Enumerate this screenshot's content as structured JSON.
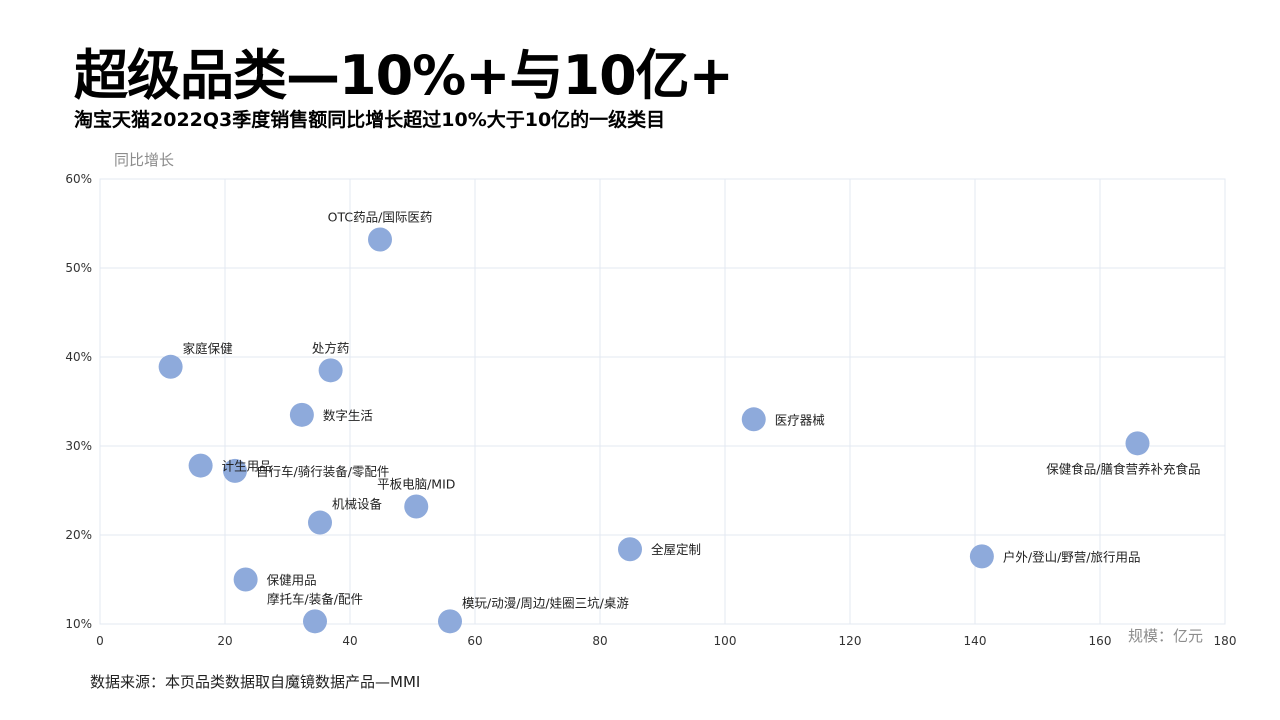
{
  "header": {
    "title": "超级品类—10%+与10亿+",
    "subtitle": "淘宝天猫2022Q3季度销售额同比增长超过10%大于10亿的一级类目"
  },
  "footer": {
    "source": "数据来源：本页品类数据取自魔镜数据产品—MMI"
  },
  "chart_data": {
    "type": "scatter",
    "xlabel": "规模：亿元",
    "ylabel": "同比增长",
    "xlim": [
      0,
      180
    ],
    "ylim": [
      10,
      60
    ],
    "x_ticks": [
      0,
      20,
      40,
      60,
      80,
      100,
      120,
      140,
      160,
      180
    ],
    "y_ticks": [
      10,
      20,
      30,
      40,
      50,
      60
    ],
    "y_tick_labels": [
      "10%",
      "20%",
      "30%",
      "40%",
      "50%",
      "60%"
    ],
    "grid": true,
    "point_color": "#8eaadb",
    "points": [
      {
        "label": "OTC药品/国际医药",
        "x": 44.8,
        "y": 53.2,
        "pos": "top"
      },
      {
        "label": "家庭保健",
        "x": 11.3,
        "y": 38.9,
        "pos": "top-right"
      },
      {
        "label": "处方药",
        "x": 36.9,
        "y": 38.5,
        "pos": "top"
      },
      {
        "label": "数字生活",
        "x": 32.3,
        "y": 33.5,
        "pos": "right"
      },
      {
        "label": "医疗器械",
        "x": 104.6,
        "y": 33.0,
        "pos": "right"
      },
      {
        "label": "保健食品/膳食营养补充食品",
        "x": 166.0,
        "y": 30.3,
        "pos": "bottom-left"
      },
      {
        "label": "计生用品",
        "x": 16.1,
        "y": 27.8,
        "pos": "right"
      },
      {
        "label": "自行车/骑行装备/零配件",
        "x": 21.6,
        "y": 27.2,
        "pos": "right"
      },
      {
        "label": "平板电脑/MID",
        "x": 50.6,
        "y": 23.2,
        "pos": "top"
      },
      {
        "label": "机械设备",
        "x": 35.2,
        "y": 21.4,
        "pos": "top-right"
      },
      {
        "label": "全屋定制",
        "x": 84.8,
        "y": 18.4,
        "pos": "right"
      },
      {
        "label": "户外/登山/野营/旅行用品",
        "x": 141.1,
        "y": 17.6,
        "pos": "right"
      },
      {
        "label": "保健用品",
        "x": 23.3,
        "y": 15.0,
        "pos": "right"
      },
      {
        "label": "摩托车/装备/配件",
        "x": 34.4,
        "y": 10.3,
        "pos": "top"
      },
      {
        "label": "模玩/动漫/周边/娃圈三坑/桌游",
        "x": 56.0,
        "y": 10.3,
        "pos": "top-right"
      }
    ]
  }
}
